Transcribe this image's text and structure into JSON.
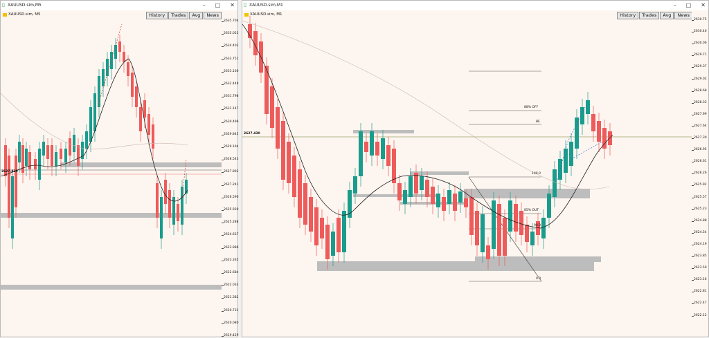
{
  "left_window": {
    "title": "XAUUSD.sim,M5",
    "symbol_label": "XAUUSD.sim, M5",
    "buttons": [
      "History",
      "Trades",
      "Avg",
      "News"
    ],
    "price_marker": "2627.430",
    "y_axis_labels": [
      "2635.704",
      "2635.053",
      "2634.402",
      "2633.751",
      "2633.100",
      "2632.449",
      "2631.798",
      "2631.147",
      "2630.496",
      "2629.845",
      "2629.194",
      "2628.543",
      "2627.892",
      "2627.241",
      "2626.590",
      "2625.939",
      "2625.288",
      "2624.637",
      "2623.986",
      "2623.335",
      "2622.684",
      "2622.033",
      "2621.382",
      "2620.731",
      "2620.080",
      "2619.429"
    ]
  },
  "right_window": {
    "title": "XAUUSD.sim,M1",
    "symbol_label": "XAUUSD.sim, M1",
    "buttons": [
      "History",
      "Trades",
      "Avg",
      "News"
    ],
    "price_marker": "2627.430",
    "fib_labels": [
      "88% OFF",
      "BE",
      "100.0",
      "85% OUT",
      "90.0",
      "0.0"
    ],
    "y_axis_labels": [
      "2630.75",
      "2630.40",
      "2630.06",
      "2629.71",
      "2629.37",
      "2629.02",
      "2628.68",
      "2628.33",
      "2627.99",
      "2627.64",
      "2627.30",
      "2626.95",
      "2626.61",
      "2626.26",
      "2625.92",
      "2625.57",
      "2625.23",
      "2624.88",
      "2624.54",
      "2624.19",
      "2623.85",
      "2623.50",
      "2623.16",
      "2622.81",
      "2622.47",
      "2622.12"
    ]
  },
  "colors": {
    "bull": "#1a9c8c",
    "bear": "#ee5b5b",
    "bg": "#fdf5ef",
    "zone": "#bdbdbd",
    "ma": "#222222",
    "accent": "#1a9a3a"
  }
}
